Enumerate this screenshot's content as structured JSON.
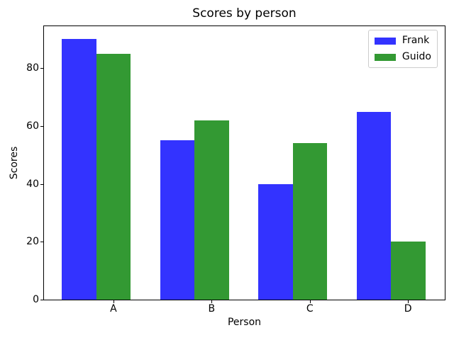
{
  "chart_data": {
    "type": "bar",
    "title": "Scores by person",
    "xlabel": "Person",
    "ylabel": "Scores",
    "categories": [
      "A",
      "B",
      "C",
      "D"
    ],
    "series": [
      {
        "name": "Frank",
        "color": "#3333ff",
        "values": [
          90,
          55,
          40,
          65
        ]
      },
      {
        "name": "Guido",
        "color": "#339933",
        "values": [
          85,
          62,
          54,
          20
        ]
      }
    ],
    "yticks": [
      0,
      20,
      40,
      60,
      80
    ],
    "ylim": [
      0,
      94.5
    ],
    "bar_width_units": 0.35,
    "legend_position": "upper right",
    "grid": false,
    "background_color": "#ffffff",
    "axis_color": "#000000"
  }
}
